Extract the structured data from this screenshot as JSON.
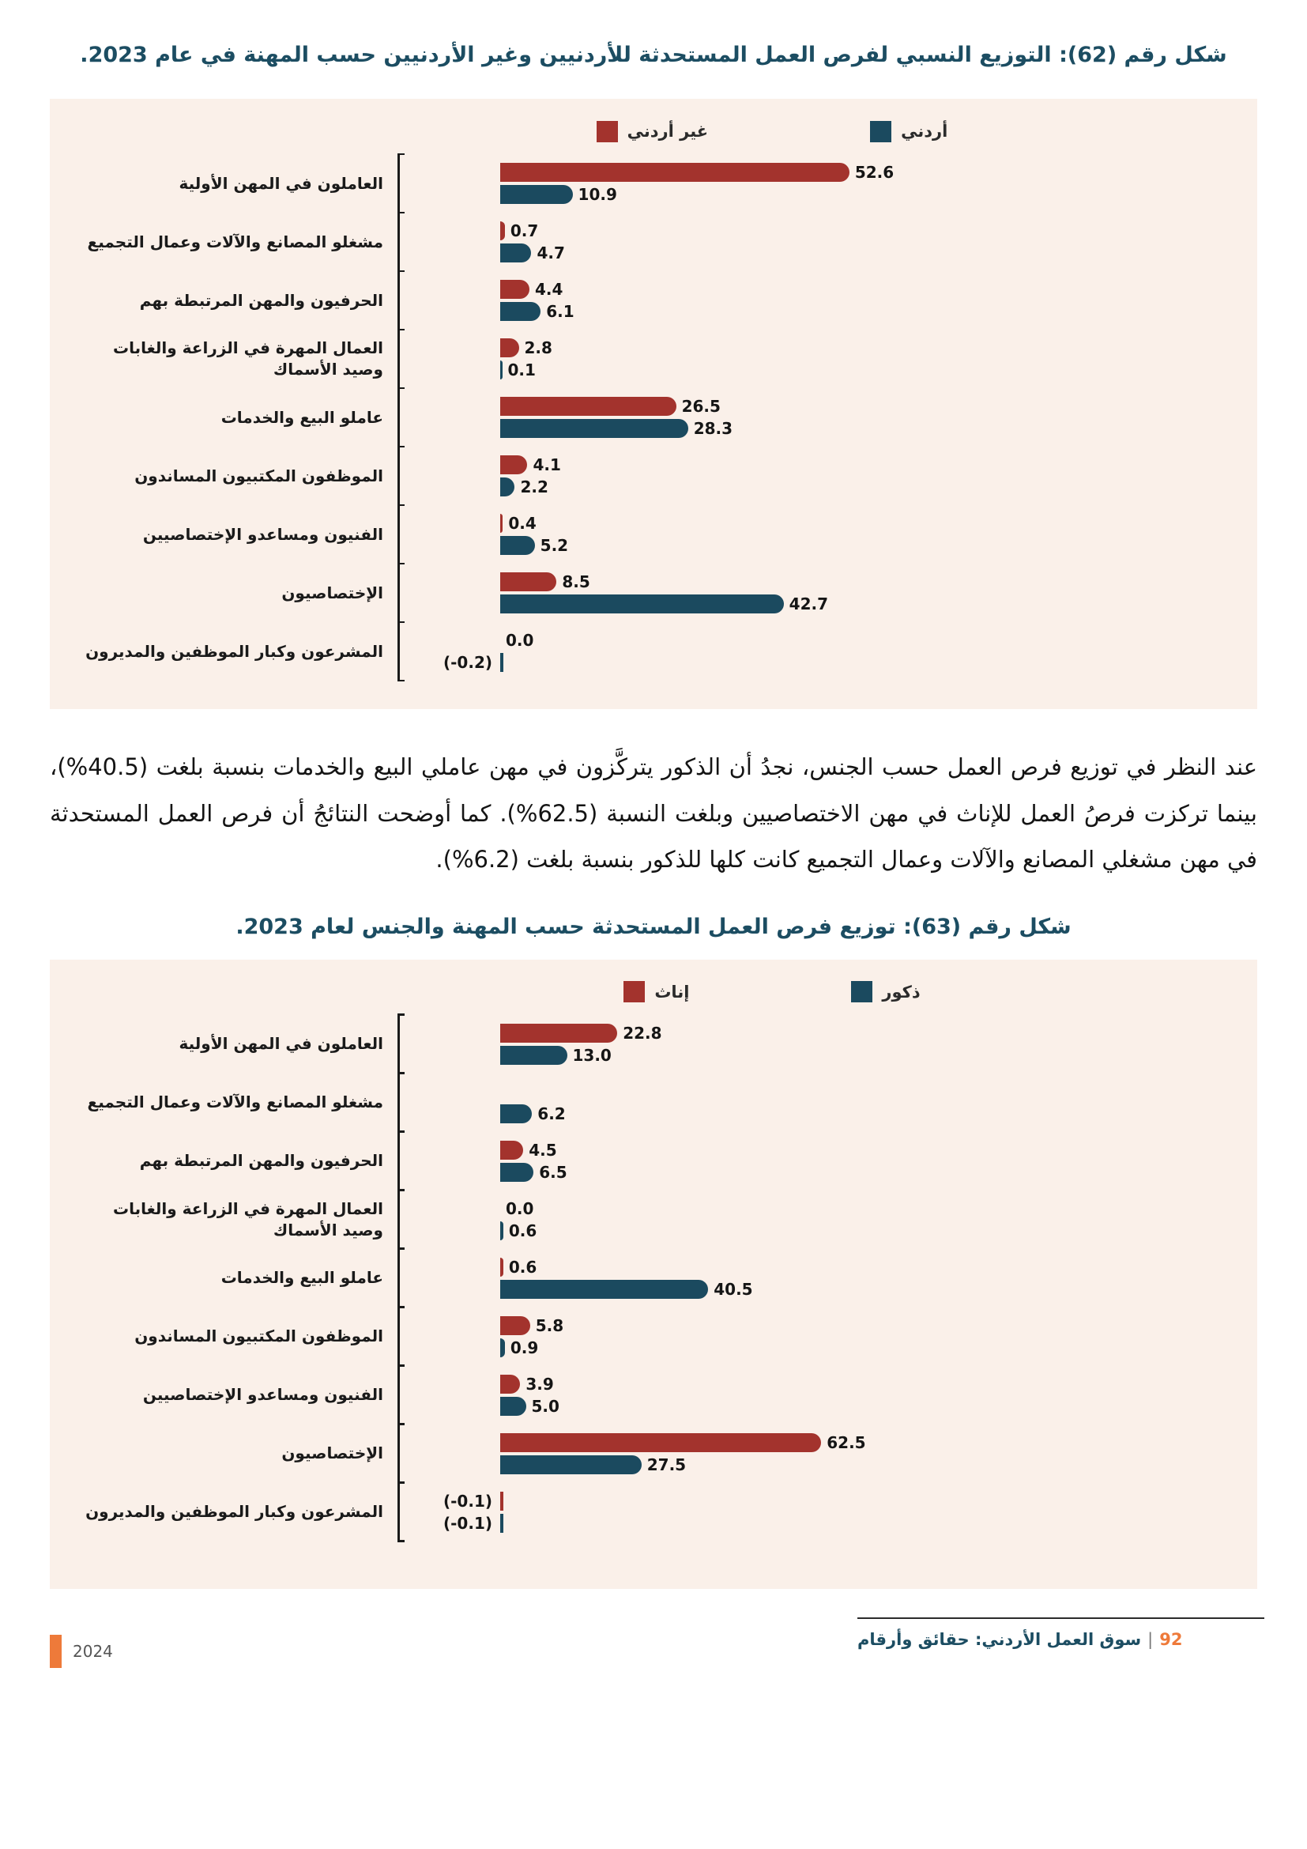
{
  "figure62_title": "شكل رقم (62): التوزيع النسبي لفرص العمل المستحدثة للأردنيين وغير الأردنيين حسب المهنة في عام 2023.",
  "figure63_title": "شكل رقم (63): توزيع فرص العمل المستحدثة حسب المهنة والجنس لعام 2023.",
  "paragraph": "عند النظر في توزيع فرص العمل حسب الجنس، نجدُ أن الذكور يتركَّزون في مهن عاملي البيع والخدمات بنسبة بلغت (40.5%)، بينما تركزت فرصُ العمل للإناث في مهن الاختصاصيين وبلغت النسبة (62.5%). كما أوضحت النتائجُ أن فرص العمل المستحدثة في مهن مشغلي المصانع والآلات وعمال التجميع كانت كلها للذكور بنسبة بلغت (6.2%).",
  "colors": {
    "series_red": "#A3332D",
    "series_blue": "#1B4A5F",
    "title_blue": "#1C4D62",
    "accent_orange": "#EE7A3A",
    "panel_background": "#FAF0E9"
  },
  "chart_data": [
    {
      "type": "bar",
      "orientation": "horizontal",
      "title": "شكل رقم (62): التوزيع النسبي لفرص العمل المستحدثة للأردنيين وغير الأردنيين حسب المهنة في عام 2023.",
      "legend_position": "top",
      "grid": false,
      "value_unit": "percent",
      "categories": [
        "العاملون في المهن الأولية",
        "مشغلو المصانع والآلات وعمال التجميع",
        "الحرفيون والمهن المرتبطة بهم",
        "العمال المهرة في الزراعة والغابات وصيد الأسماك",
        "عاملو البيع والخدمات",
        "الموظفون المكتبيون المساندون",
        "الفنيون ومساعدو الإختصاصيين",
        "الإختصاصيون",
        "المشرعون وكبار الموظفين والمديرون"
      ],
      "series": [
        {
          "name": "غير أردني",
          "color": "#A3332D",
          "values": [
            52.6,
            0.7,
            4.4,
            2.8,
            26.5,
            4.1,
            0.4,
            8.5,
            0
          ],
          "labels": [
            "52.6",
            "0.7",
            "4.4",
            "2.8",
            "26.5",
            "4.1",
            "0.4",
            "8.5",
            "0.0"
          ]
        },
        {
          "name": "أردني",
          "color": "#1B4A5F",
          "values": [
            10.9,
            4.7,
            6.1,
            0.1,
            28.3,
            2.2,
            5.2,
            42.7,
            -0.2
          ],
          "labels": [
            "10.9",
            "4.7",
            "6.1",
            "0.1",
            "28.3",
            "2.2",
            "5.2",
            "42.7",
            "(-0.2)"
          ]
        }
      ]
    },
    {
      "type": "bar",
      "orientation": "horizontal",
      "title": "شكل رقم (63): توزيع فرص العمل المستحدثة حسب المهنة والجنس لعام 2023.",
      "legend_position": "top",
      "grid": false,
      "value_unit": "percent",
      "categories": [
        "العاملون في المهن الأولية",
        "مشغلو المصانع والآلات وعمال التجميع",
        "الحرفيون والمهن المرتبطة بهم",
        "العمال المهرة في الزراعة والغابات وصيد الأسماك",
        "عاملو البيع والخدمات",
        "الموظفون المكتبيون المساندون",
        "الفنيون ومساعدو الإختصاصيين",
        "الإختصاصيون",
        "المشرعون وكبار الموظفين والمديرون"
      ],
      "series": [
        {
          "name": "إناث",
          "color": "#A3332D",
          "values": [
            22.8,
            null,
            4.5,
            0,
            0.6,
            5.8,
            3.9,
            62.5,
            -0.1
          ],
          "labels": [
            "22.8",
            null,
            "4.5",
            "0.0",
            "0.6",
            "5.8",
            "3.9",
            "62.5",
            "(-0.1)"
          ]
        },
        {
          "name": "ذكور",
          "color": "#1B4A5F",
          "values": [
            13,
            6.2,
            6.5,
            0.6,
            40.5,
            0.9,
            5,
            27.5,
            -0.1
          ],
          "labels": [
            "13.0",
            "6.2",
            "6.5",
            "0.6",
            "40.5",
            "0.9",
            "5.0",
            "27.5",
            "(-0.1)"
          ]
        }
      ]
    }
  ],
  "footer": {
    "year": "2024",
    "page_number": "92",
    "separator": "|",
    "book_title": "سوق العمل الأردني: حقائق وأرقام"
  }
}
